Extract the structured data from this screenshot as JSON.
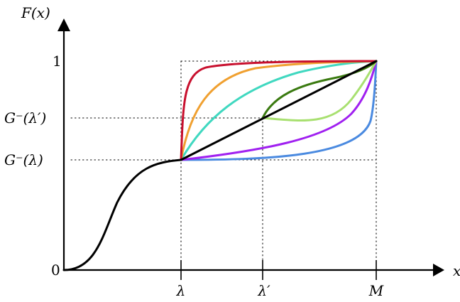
{
  "axes": {
    "y_label": "F(x)",
    "x_label": "x"
  },
  "y_ticks": {
    "zero": "0",
    "one": "1",
    "g_lambda": "G⁻(λ)",
    "g_lambda_prime": "G⁻(λ′)"
  },
  "x_ticks": {
    "lambda": "λ",
    "lambda_prime": "λ′",
    "m": "M"
  },
  "colors": {
    "axis": "#000000",
    "base_curve": "#000000",
    "diagonal": "#000000",
    "crimson": "#c8102e",
    "orange": "#f0a030",
    "turquoise": "#40d8c0",
    "dark_green": "#3a7a10",
    "light_green": "#a8e070",
    "violet": "#a020f0",
    "blue": "#4a8ae0"
  },
  "curves": [
    {
      "id": "crimson-curve",
      "color": "crimson"
    },
    {
      "id": "orange-curve",
      "color": "orange"
    },
    {
      "id": "turquoise-curve",
      "color": "turquoise"
    },
    {
      "id": "dark-green-curve",
      "color": "dark_green"
    },
    {
      "id": "light-green-curve",
      "color": "light_green"
    },
    {
      "id": "violet-curve",
      "color": "violet"
    },
    {
      "id": "blue-curve",
      "color": "blue"
    },
    {
      "id": "diagonal-line",
      "color": "diagonal"
    }
  ]
}
